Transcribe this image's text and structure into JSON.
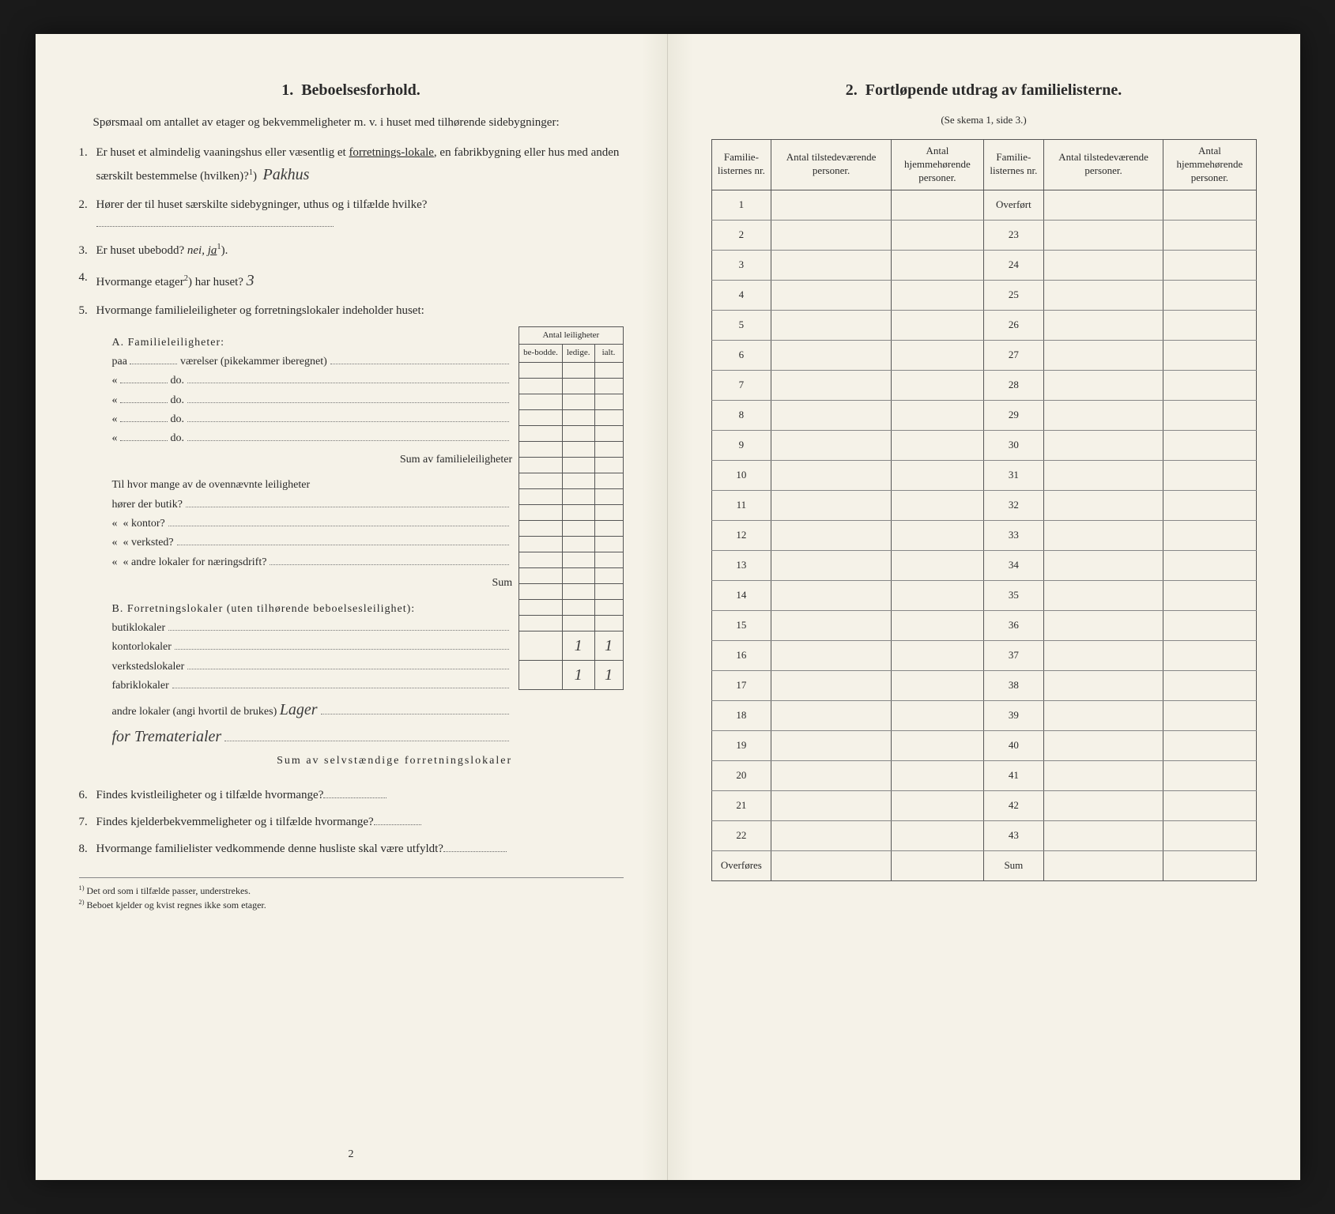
{
  "colors": {
    "paper": "#f5f2e8",
    "ink": "#2a2a2a",
    "border": "#555555",
    "background": "#1a1a1a"
  },
  "left": {
    "section_num": "1.",
    "section_title": "Beboelsesforhold.",
    "intro": "Spørsmaal om antallet av etager og bekvemmeligheter m. v. i huset med tilhørende sidebygninger:",
    "q1_num": "1.",
    "q1": "Er huset et almindelig vaaningshus eller væsentlig et",
    "q1_underline1": "forretnings-lokale",
    "q1_mid": ", en fabrikbygning eller hus med anden særskilt bestemmelse (hvilken)?",
    "q1_sup": "1",
    "q1_hand": "Pakhus",
    "q2_num": "2.",
    "q2": "Hører der til huset særskilte sidebygninger, uthus og i tilfælde hvilke?",
    "q3_num": "3.",
    "q3": "Er huset ubebodd?",
    "q3_nei": "nei,",
    "q3_ja": "ja",
    "q3_sup": "1",
    "q4_num": "4.",
    "q4": "Hvormange etager",
    "q4_sup": "2",
    "q4_end": ") har huset?",
    "q4_hand": "3",
    "q5_num": "5.",
    "q5": "Hvormange familieleiligheter og forretningslokaler indeholder huset:",
    "antal_header": "Antal leiligheter",
    "col_bebodde": "be-bodde.",
    "col_ledige": "ledige.",
    "col_ialt": "ialt.",
    "a_label": "A. Familieleiligheter:",
    "a_paa": "paa",
    "a_vaerelser": "værelser (pikekammer iberegnet)",
    "a_do": "do.",
    "a_sum": "Sum av familieleiligheter",
    "a_hvor": "Til hvor mange av de ovennævnte leiligheter",
    "a_butik": "hører der butik?",
    "a_kontor": "kontor?",
    "a_verksted": "verksted?",
    "a_andre": "andre lokaler for næringsdrift?",
    "a_sum2": "Sum",
    "b_label": "B. Forretningslokaler (uten tilhørende beboelsesleilighet):",
    "b_butik": "butiklokaler",
    "b_kontor": "kontorlokaler",
    "b_verksted": "verkstedslokaler",
    "b_fabrik": "fabriklokaler",
    "b_andre": "andre lokaler (angi hvortil de brukes)",
    "b_hand1": "Lager",
    "b_hand2": "for Trematerialer",
    "b_sum": "Sum av selvstændige forretningslokaler",
    "b_val_ledige": "1",
    "b_val_ialt": "1",
    "b_sum_ledige": "1",
    "b_sum_ialt": "1",
    "q6_num": "6.",
    "q6": "Findes kvistleiligheter og i tilfælde hvormange?",
    "q7_num": "7.",
    "q7": "Findes kjelderbekvemmeligheter og i tilfælde hvormange?",
    "q8_num": "8.",
    "q8": "Hvormange familielister vedkommende denne husliste skal være utfyldt?",
    "fn1_num": "1)",
    "fn1": "Det ord som i tilfælde passer, understrekes.",
    "fn2_num": "2)",
    "fn2": "Beboet kjelder og kvist regnes ikke som etager.",
    "pagenum": "2"
  },
  "right": {
    "section_num": "2.",
    "section_title": "Fortløpende utdrag av familielisterne.",
    "subtitle": "(Se skema 1, side 3.)",
    "col1": "Familie-listernes nr.",
    "col2": "Antal tilstedeværende personer.",
    "col3": "Antal hjemmehørende personer.",
    "col4": "Familie-listernes nr.",
    "col5": "Antal tilstedeværende personer.",
    "col6": "Antal hjemmehørende personer.",
    "rows_left": [
      "1",
      "2",
      "3",
      "4",
      "5",
      "6",
      "7",
      "8",
      "9",
      "10",
      "11",
      "12",
      "13",
      "14",
      "15",
      "16",
      "17",
      "18",
      "19",
      "20",
      "21",
      "22"
    ],
    "overfort": "Overført",
    "rows_right": [
      "23",
      "24",
      "25",
      "26",
      "27",
      "28",
      "29",
      "30",
      "31",
      "32",
      "33",
      "34",
      "35",
      "36",
      "37",
      "38",
      "39",
      "40",
      "41",
      "42",
      "43"
    ],
    "overfores": "Overføres",
    "sum": "Sum"
  }
}
